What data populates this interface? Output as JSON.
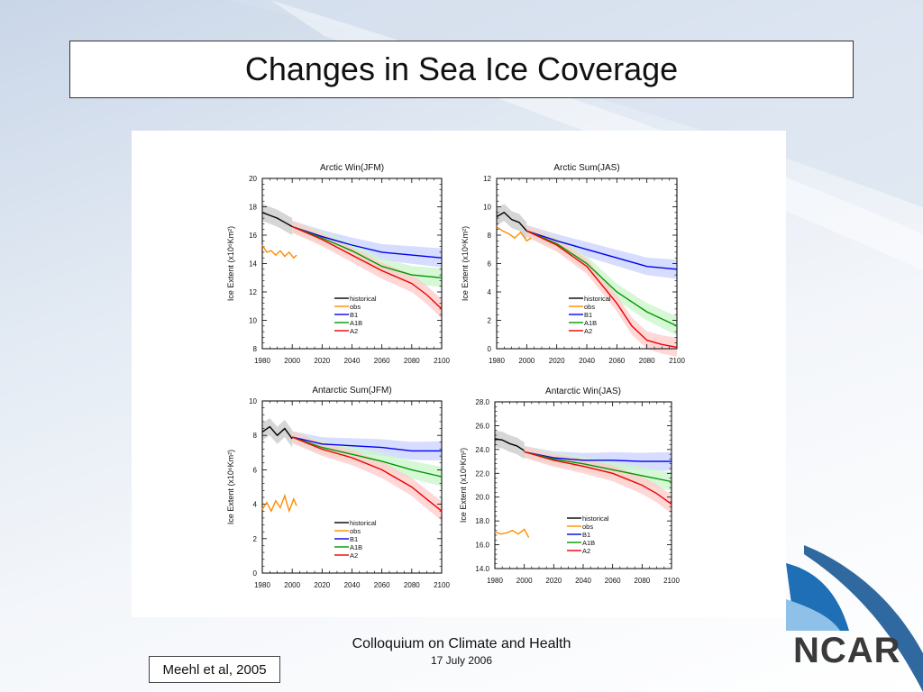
{
  "slide": {
    "title": "Changes in Sea Ice Coverage",
    "footer_line1": "Colloquium on Climate and Health",
    "footer_line2": "17 July 2006",
    "citation": "Meehl et al, 2005",
    "logo_text": "NCAR"
  },
  "colors": {
    "historical": "#000000",
    "obs": "#ff8c00",
    "B1": "#0000ee",
    "A1B": "#009900",
    "A2": "#ee0000",
    "B1_band": "#c8d2ff",
    "A1B_band": "#c9f5c9",
    "A2_band": "#ffc9c9",
    "hist_band": "#c8c8c8",
    "logo_blue": "#1e6fb6"
  },
  "legend_labels": [
    "historical",
    "obs",
    "B1",
    "A1B",
    "A2"
  ],
  "chart_data": [
    {
      "type": "line",
      "title": "Arctic Win(JFM)",
      "ylabel": "Ice Extent (x10⁶Km²)",
      "xlim": [
        1980,
        2100
      ],
      "ylim": [
        8,
        20
      ],
      "yticks": [
        8,
        10,
        12,
        14,
        16,
        18,
        20
      ],
      "ytick_labels": [
        "8",
        "10",
        "12",
        "14",
        "16",
        "18",
        "20"
      ],
      "xticks": [
        1980,
        2000,
        2020,
        2040,
        2060,
        2080,
        2100
      ],
      "legend": "lower-center",
      "series": [
        {
          "name": "historical",
          "x": [
            1980,
            1985,
            1990,
            1995,
            2000
          ],
          "y": [
            17.6,
            17.4,
            17.2,
            16.9,
            16.6
          ]
        },
        {
          "name": "obs",
          "x": [
            1980,
            1983,
            1986,
            1989,
            1992,
            1995,
            1998,
            2001,
            2003
          ],
          "y": [
            15.3,
            14.8,
            14.9,
            14.6,
            14.9,
            14.5,
            14.8,
            14.4,
            14.6
          ]
        },
        {
          "name": "B1",
          "x": [
            2000,
            2020,
            2040,
            2060,
            2080,
            2100
          ],
          "y": [
            16.6,
            15.9,
            15.3,
            14.8,
            14.6,
            14.4
          ]
        },
        {
          "name": "A1B",
          "x": [
            2000,
            2020,
            2040,
            2060,
            2080,
            2100
          ],
          "y": [
            16.6,
            15.8,
            14.9,
            13.8,
            13.2,
            13.0
          ]
        },
        {
          "name": "A2",
          "x": [
            2000,
            2020,
            2040,
            2060,
            2080,
            2090,
            2100
          ],
          "y": [
            16.6,
            15.7,
            14.6,
            13.5,
            12.6,
            11.8,
            10.8
          ]
        }
      ]
    },
    {
      "type": "line",
      "title": "Arctic Sum(JAS)",
      "ylabel": "Ice Extent (x10⁶Km²)",
      "xlim": [
        1980,
        2100
      ],
      "ylim": [
        0,
        12
      ],
      "yticks": [
        0,
        2,
        4,
        6,
        8,
        10,
        12
      ],
      "ytick_labels": [
        "0",
        "2",
        "4",
        "6",
        "8",
        "10",
        "12"
      ],
      "xticks": [
        1980,
        2000,
        2020,
        2040,
        2060,
        2080,
        2100
      ],
      "legend": "lower-center",
      "series": [
        {
          "name": "historical",
          "x": [
            1980,
            1985,
            1990,
            1995,
            2000
          ],
          "y": [
            9.3,
            9.6,
            9.1,
            8.9,
            8.3
          ]
        },
        {
          "name": "obs",
          "x": [
            1980,
            1984,
            1988,
            1992,
            1996,
            2000,
            2003
          ],
          "y": [
            8.6,
            8.3,
            8.1,
            7.8,
            8.2,
            7.6,
            7.8
          ]
        },
        {
          "name": "B1",
          "x": [
            2000,
            2020,
            2040,
            2060,
            2080,
            2100
          ],
          "y": [
            8.3,
            7.6,
            7.0,
            6.4,
            5.8,
            5.6
          ]
        },
        {
          "name": "A1B",
          "x": [
            2000,
            2020,
            2040,
            2060,
            2080,
            2100
          ],
          "y": [
            8.3,
            7.4,
            6.0,
            4.0,
            2.6,
            1.6
          ]
        },
        {
          "name": "A2",
          "x": [
            2000,
            2020,
            2040,
            2060,
            2070,
            2080,
            2090,
            2100
          ],
          "y": [
            8.3,
            7.3,
            5.8,
            3.2,
            1.6,
            0.6,
            0.3,
            0.1
          ]
        }
      ]
    },
    {
      "type": "line",
      "title": "Antarctic Sum(JFM)",
      "ylabel": "Ice Extent (x10⁶Km²)",
      "xlim": [
        1980,
        2100
      ],
      "ylim": [
        0,
        10
      ],
      "yticks": [
        0,
        2,
        4,
        6,
        8,
        10
      ],
      "ytick_labels": [
        "0",
        "2",
        "4",
        "6",
        "8",
        "10"
      ],
      "xticks": [
        1980,
        2000,
        2020,
        2040,
        2060,
        2080,
        2100
      ],
      "legend": "lower-center",
      "series": [
        {
          "name": "historical",
          "x": [
            1980,
            1985,
            1990,
            1995,
            2000
          ],
          "y": [
            8.2,
            8.5,
            8.0,
            8.4,
            7.8
          ]
        },
        {
          "name": "obs",
          "x": [
            1980,
            1983,
            1986,
            1989,
            1992,
            1995,
            1998,
            2001,
            2003
          ],
          "y": [
            3.7,
            4.1,
            3.6,
            4.2,
            3.8,
            4.5,
            3.6,
            4.3,
            3.9
          ]
        },
        {
          "name": "B1",
          "x": [
            2000,
            2020,
            2040,
            2060,
            2080,
            2100
          ],
          "y": [
            7.9,
            7.5,
            7.4,
            7.3,
            7.1,
            7.1
          ]
        },
        {
          "name": "A1B",
          "x": [
            2000,
            2020,
            2040,
            2060,
            2080,
            2100
          ],
          "y": [
            7.9,
            7.3,
            6.9,
            6.5,
            6.0,
            5.6
          ]
        },
        {
          "name": "A2",
          "x": [
            2000,
            2020,
            2040,
            2060,
            2080,
            2090,
            2100
          ],
          "y": [
            7.9,
            7.2,
            6.7,
            6.0,
            5.0,
            4.3,
            3.6
          ]
        }
      ]
    },
    {
      "type": "line",
      "title": "Antarctic Win(JAS)",
      "ylabel": "Ice Extent (x10⁶Km²)",
      "xlim": [
        1980,
        2100
      ],
      "ylim": [
        14,
        28
      ],
      "yticks": [
        14,
        16,
        18,
        20,
        22,
        24,
        26,
        28
      ],
      "ytick_labels": [
        "14.0",
        "16.0",
        "18.0",
        "20.0",
        "22.0",
        "24.0",
        "26.0",
        "28.0"
      ],
      "xticks": [
        1980,
        2000,
        2020,
        2040,
        2060,
        2080,
        2100
      ],
      "legend": "lower-center",
      "series": [
        {
          "name": "historical",
          "x": [
            1980,
            1985,
            1990,
            1995,
            2000
          ],
          "y": [
            24.9,
            24.8,
            24.5,
            24.3,
            23.9
          ]
        },
        {
          "name": "obs",
          "x": [
            1980,
            1984,
            1988,
            1992,
            1996,
            2000,
            2003
          ],
          "y": [
            17.1,
            16.9,
            17.0,
            17.2,
            16.9,
            17.3,
            16.6
          ]
        },
        {
          "name": "B1",
          "x": [
            2000,
            2020,
            2040,
            2060,
            2080,
            2100
          ],
          "y": [
            23.8,
            23.3,
            23.1,
            23.1,
            23.0,
            23.0
          ]
        },
        {
          "name": "A1B",
          "x": [
            2000,
            2020,
            2040,
            2060,
            2080,
            2100
          ],
          "y": [
            23.8,
            23.2,
            22.8,
            22.3,
            21.8,
            21.3
          ]
        },
        {
          "name": "A2",
          "x": [
            2000,
            2020,
            2040,
            2060,
            2080,
            2090,
            2100
          ],
          "y": [
            23.8,
            23.1,
            22.6,
            22.0,
            21.0,
            20.3,
            19.4
          ]
        }
      ]
    }
  ],
  "x_tick_labels": [
    "1980",
    "2000",
    "2020",
    "2040",
    "2060",
    "2080",
    "2100"
  ]
}
